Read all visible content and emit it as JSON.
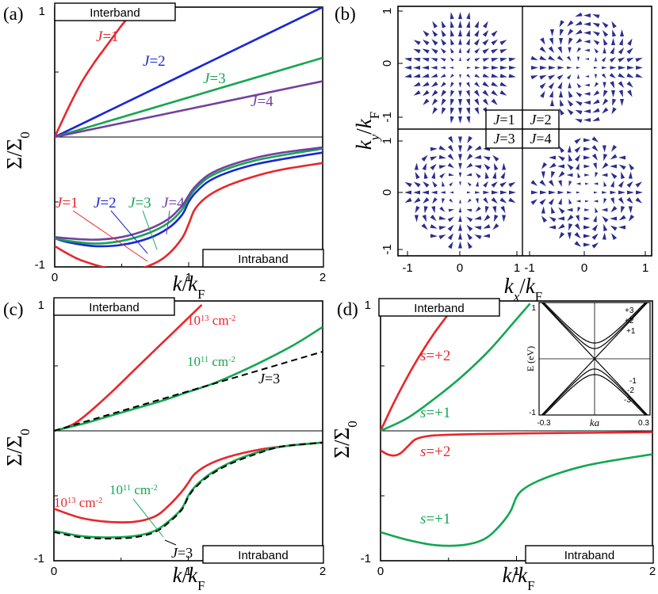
{
  "colors": {
    "red": "#e8262b",
    "blue": "#1a26d6",
    "green": "#14a651",
    "purple": "#7340a0",
    "black": "#000000",
    "arrow": "#2a2d8f"
  },
  "chart_data": [
    {
      "type": "line",
      "panel": "(a)",
      "title": "",
      "xlabel": "k/k_F",
      "ylabel": "Σ/Σ₀",
      "xlim": [
        0,
        2
      ],
      "ylim": [
        -1,
        1
      ],
      "xticks": [
        "0",
        "1",
        "2"
      ],
      "yticks": [
        "1",
        "-1"
      ],
      "box_top": "Interband",
      "box_bottom": "Intraband",
      "series": [
        {
          "name": "J=1",
          "color": "red",
          "branch": "interband",
          "x": [
            0,
            0.1,
            0.2,
            0.3,
            0.4,
            0.5,
            0.58
          ],
          "y": [
            0,
            0.22,
            0.42,
            0.58,
            0.72,
            0.86,
            0.96
          ]
        },
        {
          "name": "J=2",
          "color": "blue",
          "branch": "interband",
          "x": [
            0,
            2
          ],
          "y": [
            0,
            1
          ]
        },
        {
          "name": "J=3",
          "color": "green",
          "branch": "interband",
          "x": [
            0,
            2
          ],
          "y": [
            0,
            0.61
          ]
        },
        {
          "name": "J=4",
          "color": "purple",
          "branch": "interband",
          "x": [
            0,
            2
          ],
          "y": [
            0,
            0.43
          ]
        },
        {
          "name": "J=1",
          "color": "red",
          "branch": "intraband",
          "x": [
            0,
            0.1,
            0.2,
            0.4,
            0.6,
            0.75,
            0.85,
            0.95,
            1,
            1.05,
            1.15,
            1.3,
            1.5,
            1.7,
            2
          ],
          "y": [
            -0.84,
            -0.9,
            -0.95,
            -1.01,
            -1.02,
            -0.97,
            -0.9,
            -0.78,
            -0.67,
            -0.55,
            -0.45,
            -0.37,
            -0.3,
            -0.25,
            -0.2
          ]
        },
        {
          "name": "J=2",
          "color": "blue",
          "branch": "intraband",
          "x": [
            0,
            0.1,
            0.3,
            0.5,
            0.7,
            0.85,
            0.95,
            1,
            1.05,
            1.15,
            1.3,
            1.5,
            1.7,
            2
          ],
          "y": [
            -0.78,
            -0.81,
            -0.84,
            -0.83,
            -0.78,
            -0.7,
            -0.6,
            -0.5,
            -0.43,
            -0.34,
            -0.27,
            -0.21,
            -0.17,
            -0.12
          ]
        },
        {
          "name": "J=3",
          "color": "green",
          "branch": "intraband",
          "x": [
            0,
            0.1,
            0.3,
            0.5,
            0.7,
            0.85,
            0.95,
            1,
            1.05,
            1.15,
            1.3,
            1.5,
            1.7,
            2
          ],
          "y": [
            -0.78,
            -0.8,
            -0.82,
            -0.8,
            -0.74,
            -0.66,
            -0.56,
            -0.47,
            -0.4,
            -0.31,
            -0.24,
            -0.18,
            -0.14,
            -0.09
          ]
        },
        {
          "name": "J=4",
          "color": "purple",
          "branch": "intraband",
          "x": [
            0,
            0.1,
            0.3,
            0.5,
            0.7,
            0.85,
            0.95,
            1,
            1.05,
            1.15,
            1.3,
            1.5,
            1.7,
            2
          ],
          "y": [
            -0.77,
            -0.78,
            -0.79,
            -0.77,
            -0.71,
            -0.63,
            -0.53,
            -0.45,
            -0.38,
            -0.29,
            -0.22,
            -0.16,
            -0.12,
            -0.08
          ]
        }
      ],
      "labels": [
        "J=1",
        "J=2",
        "J=3",
        "J=4",
        "J=1",
        "J=2",
        "J=3",
        "J=4"
      ]
    },
    {
      "type": "vector-field",
      "panel": "(b)",
      "xlabel": "k_x/k_F",
      "ylabel": "k_y/k_F",
      "xticks": [
        "-1",
        "0",
        "1",
        "-1",
        "0",
        "1"
      ],
      "yticks": [
        "1",
        "0",
        "-1",
        "1",
        "0",
        "-1"
      ],
      "quadrants": [
        "J=1",
        "J=2",
        "J=3",
        "J=4"
      ]
    },
    {
      "type": "line",
      "panel": "(c)",
      "xlabel": "k/k_F",
      "ylabel": "Σ/Σ₀",
      "xlim": [
        0,
        2
      ],
      "ylim": [
        -1,
        1
      ],
      "xticks": [
        "0",
        "1",
        "2"
      ],
      "yticks": [
        "1",
        "-1"
      ],
      "box_top": "Interband",
      "box_bottom": "Intraband",
      "series": [
        {
          "name": "10^13 cm^-2",
          "color": "red",
          "branch": "interband",
          "x": [
            0,
            0.1,
            0.2,
            0.4,
            0.6,
            0.8,
            1,
            1.1
          ],
          "y": [
            0,
            0.03,
            0.09,
            0.27,
            0.47,
            0.67,
            0.87,
            0.97
          ]
        },
        {
          "name": "10^11 cm^-2",
          "color": "green",
          "branch": "interband",
          "x": [
            0,
            0.2,
            0.4,
            0.6,
            0.8,
            1,
            1.2,
            1.4,
            1.6,
            1.8,
            2
          ],
          "y": [
            0,
            0.05,
            0.11,
            0.17,
            0.23,
            0.3,
            0.37,
            0.46,
            0.56,
            0.67,
            0.8
          ]
        },
        {
          "name": "J=3",
          "color": "black",
          "branch": "interband",
          "x": [
            0,
            2
          ],
          "y": [
            0,
            0.61
          ]
        },
        {
          "name": "10^13 cm^-2",
          "color": "red",
          "branch": "intraband",
          "x": [
            0,
            0.2,
            0.4,
            0.6,
            0.75,
            0.85,
            0.95,
            1,
            1.05,
            1.15,
            1.3,
            1.5,
            1.7,
            2
          ],
          "y": [
            -0.6,
            -0.67,
            -0.7,
            -0.7,
            -0.66,
            -0.58,
            -0.47,
            -0.4,
            -0.33,
            -0.26,
            -0.2,
            -0.15,
            -0.12,
            -0.09
          ]
        },
        {
          "name": "10^11 cm^-2",
          "color": "green",
          "branch": "intraband",
          "x": [
            0,
            0.2,
            0.4,
            0.6,
            0.75,
            0.85,
            0.95,
            1,
            1.05,
            1.15,
            1.3,
            1.5,
            1.7,
            2
          ],
          "y": [
            -0.77,
            -0.81,
            -0.82,
            -0.81,
            -0.77,
            -0.7,
            -0.6,
            -0.5,
            -0.43,
            -0.34,
            -0.25,
            -0.17,
            -0.12,
            -0.09
          ]
        },
        {
          "name": "J=3",
          "color": "black",
          "branch": "intraband",
          "x": [
            0,
            0.2,
            0.4,
            0.6,
            0.75,
            0.85,
            0.95,
            1,
            1.05,
            1.15,
            1.3,
            1.5,
            1.7,
            2
          ],
          "y": [
            -0.78,
            -0.82,
            -0.83,
            -0.82,
            -0.78,
            -0.71,
            -0.61,
            -0.51,
            -0.44,
            -0.35,
            -0.26,
            -0.18,
            -0.12,
            -0.09
          ]
        }
      ],
      "labels": [
        "10",
        "13",
        " cm",
        "-2",
        "10",
        "11",
        " cm",
        "-2",
        "J=3",
        "10",
        "11",
        " cm",
        "-2",
        "10",
        "13",
        " cm",
        "-2",
        "J=3"
      ]
    },
    {
      "type": "line",
      "panel": "(d)",
      "xlabel": "k/k_F",
      "ylabel": "Σ/Σ₀",
      "xlim": [
        0,
        2
      ],
      "ylim": [
        -1,
        1
      ],
      "xticks": [
        "0",
        "1",
        "2"
      ],
      "yticks": [
        "1",
        "-1"
      ],
      "box_top": "Interband",
      "box_bottom": "Intraband",
      "series": [
        {
          "name": "s=+2",
          "color": "red",
          "branch": "interband",
          "x": [
            0,
            0.1,
            0.2,
            0.3,
            0.4,
            0.5,
            0.55
          ],
          "y": [
            0,
            0.22,
            0.42,
            0.6,
            0.76,
            0.9,
            0.97
          ]
        },
        {
          "name": "s=+1",
          "color": "green",
          "branch": "interband",
          "x": [
            0,
            0.2,
            0.4,
            0.6,
            0.8,
            1,
            1.1
          ],
          "y": [
            0,
            0.1,
            0.25,
            0.42,
            0.62,
            0.86,
            0.98
          ]
        },
        {
          "name": "s=+2",
          "color": "red",
          "branch": "intraband",
          "x": [
            0,
            0.05,
            0.1,
            0.15,
            0.2,
            0.25,
            0.3,
            0.35,
            0.4,
            0.5,
            0.7,
            1,
            1.5,
            2
          ],
          "y": [
            -0.15,
            -0.18,
            -0.19,
            -0.17,
            -0.12,
            -0.07,
            -0.05,
            -0.04,
            -0.035,
            -0.03,
            -0.025,
            -0.02,
            -0.015,
            -0.01
          ]
        },
        {
          "name": "s=+1",
          "color": "green",
          "branch": "intraband",
          "x": [
            0,
            0.2,
            0.4,
            0.6,
            0.75,
            0.85,
            0.95,
            1,
            1.05,
            1.15,
            1.3,
            1.5,
            1.7,
            2
          ],
          "y": [
            -0.78,
            -0.84,
            -0.88,
            -0.88,
            -0.84,
            -0.76,
            -0.63,
            -0.51,
            -0.45,
            -0.39,
            -0.33,
            -0.27,
            -0.23,
            -0.18
          ]
        }
      ],
      "labels": [
        "s=+2",
        "s=+1",
        "s=+2",
        "s=+1"
      ],
      "inset": {
        "ylabel": "E (eV)",
        "xlabel": "ka",
        "xticks": [
          "-0.3",
          "0.3"
        ],
        "yticks": [
          "1",
          "-1"
        ],
        "band_labels": [
          "+3",
          "+2",
          "+1",
          "-1",
          "-2",
          "-3"
        ]
      }
    }
  ],
  "panels": {
    "a": {
      "letter": "(a)",
      "xlabel_main": "k",
      "xlabel_sep": "/",
      "xlabel_k": "k",
      "xlabel_sub": "F",
      "ylabel": "Σ/Σ"
    },
    "b": {
      "letter": "(b)",
      "xlabel_main": "k",
      "xlabel_sub1": "x",
      "xlabel_sep": "/",
      "xlabel_k": "k",
      "xlabel_sub2": "F",
      "ylabel_main": "k",
      "ylabel_sub1": "y",
      "ylabel_sub2": "F"
    },
    "c": {
      "letter": "(c)"
    },
    "d": {
      "letter": "(d)"
    }
  },
  "y_sub": "0"
}
